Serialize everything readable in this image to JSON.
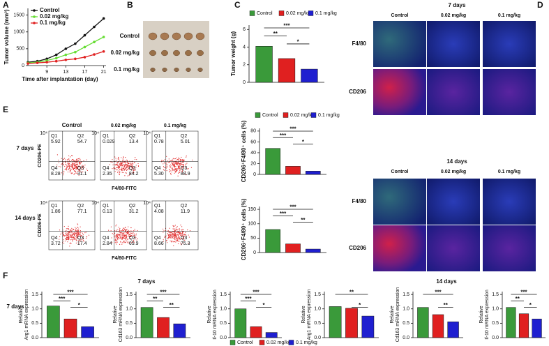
{
  "panel_labels": [
    "A",
    "B",
    "C",
    "D",
    "E",
    "F"
  ],
  "legend": {
    "names": [
      "Control",
      "0.02 mg/kg",
      "0.1 mg/kg"
    ],
    "colors": [
      "#3a9a3a",
      "#e02020",
      "#1f1fd0"
    ]
  },
  "photo": {
    "rows": [
      "Control",
      "0.02 mg/kg",
      "0.1 mg/kg"
    ]
  },
  "microscopy": [
    {
      "title": "7 days",
      "columns": [
        "Control",
        "0.02 mg/kg",
        "0.1 mg/kg"
      ],
      "rows": [
        "F4/80",
        "CD206"
      ]
    },
    {
      "title": "14 days",
      "columns": [
        "Control",
        "0.02 mg/kg",
        "0.1 mg/kg"
      ],
      "rows": [
        "F4/80",
        "CD206"
      ]
    }
  ],
  "flow": {
    "columns": [
      "Control",
      "0.02 mg/kg",
      "0.1 mg/kg"
    ],
    "y_label": "CD206-PE",
    "x_label": "F4/80-FITC",
    "tick": "10⁴",
    "quadrant_names": [
      "Q1",
      "Q2",
      "Q3",
      "Q4"
    ],
    "rows": [
      {
        "label": "7 days",
        "plots": [
          [
            "5.92",
            "54.7",
            "31.1",
            "8.28"
          ],
          [
            "0.029",
            "13.4",
            "84.2",
            "2.35"
          ],
          [
            "0.78",
            "5.01",
            "88.9",
            "5.30"
          ]
        ]
      },
      {
        "label": "14 days",
        "plots": [
          [
            "1.86",
            "77.1",
            "17.4",
            "3.72"
          ],
          [
            "0.13",
            "31.2",
            "65.9",
            "2.84"
          ],
          [
            "4.08",
            "11.9",
            "75.3",
            "8.66"
          ]
        ]
      }
    ]
  },
  "gene_expression": {
    "titles": [
      "7 days",
      "14 days"
    ],
    "row_label": "7 days"
  },
  "chart_data": [
    {
      "type": "line",
      "xlabel": "Time after implantation (day)",
      "ylabel": "Tumor volume (mm³)",
      "x": [
        5,
        7,
        9,
        11,
        13,
        15,
        17,
        19,
        21
      ],
      "xlim": [
        5,
        21.5
      ],
      "xticks": [
        9,
        13,
        17,
        21
      ],
      "ylim": [
        0,
        1700
      ],
      "yticks": [
        0,
        500,
        1000,
        1500
      ],
      "series": [
        {
          "name": "Control",
          "color": "#111111",
          "values": [
            100,
            130,
            200,
            320,
            500,
            650,
            900,
            1150,
            1400
          ]
        },
        {
          "name": "0.02 mg/kg",
          "color": "#66dd33",
          "values": [
            80,
            100,
            150,
            220,
            320,
            400,
            550,
            700,
            850
          ]
        },
        {
          "name": "0.1 mg/kg",
          "color": "#e02020",
          "values": [
            60,
            80,
            100,
            130,
            170,
            200,
            250,
            330,
            420
          ]
        }
      ]
    },
    {
      "type": "bar",
      "ylabel": [
        "Tumor weight (g)"
      ],
      "values": [
        4.1,
        2.7,
        1.5
      ],
      "ylim": [
        0,
        6.5
      ],
      "yticks": [
        0,
        2,
        4,
        6
      ],
      "significance": [
        "***",
        "**",
        "*"
      ]
    },
    {
      "type": "bar",
      "ylabel": [
        "CD206⁺F4/80⁺ cells (%)"
      ],
      "values": [
        48,
        15,
        6
      ],
      "ylim": [
        0,
        85
      ],
      "yticks": [
        0,
        20,
        40,
        60,
        80
      ],
      "significance": [
        "***",
        "***",
        "*"
      ]
    },
    {
      "type": "bar",
      "ylabel": [
        "CD206⁺F4/80⁺ cells (%)"
      ],
      "values": [
        80,
        30,
        12
      ],
      "ylim": [
        0,
        160
      ],
      "yticks": [
        0,
        50,
        100,
        150
      ],
      "significance": [
        "***",
        "***",
        "**"
      ]
    },
    {
      "type": "bar",
      "ylabel": [
        "Relative",
        "Arg1 mRNA expression"
      ],
      "values": [
        1.1,
        0.65,
        0.38
      ],
      "ylim": [
        0,
        1.6
      ],
      "yticks": [
        {
          "value": 0,
          "label": "0.0"
        },
        {
          "value": 0.5,
          "label": "0.5"
        },
        {
          "value": 1,
          "label": "1.0"
        },
        {
          "value": 1.5,
          "label": "1.5"
        }
      ],
      "significance": [
        "***",
        "***",
        "*"
      ]
    },
    {
      "type": "bar",
      "ylabel": [
        "Relative",
        "Cd163 mRNA expression"
      ],
      "values": [
        1.05,
        0.7,
        0.48
      ],
      "ylim": [
        0,
        1.6
      ],
      "yticks": [
        {
          "value": 0,
          "label": "0.0"
        },
        {
          "value": 0.5,
          "label": "0.5"
        },
        {
          "value": 1,
          "label": "1.0"
        },
        {
          "value": 1.5,
          "label": "1.5"
        }
      ],
      "significance": [
        "***",
        "**",
        "**"
      ]
    },
    {
      "type": "bar",
      "ylabel": [
        "Relative",
        "Il-10 mRNA expression"
      ],
      "values": [
        1.0,
        0.38,
        0.18
      ],
      "ylim": [
        0,
        1.6
      ],
      "yticks": [
        {
          "value": 0,
          "label": "0.0"
        },
        {
          "value": 0.5,
          "label": "0.5"
        },
        {
          "value": 1,
          "label": "1.0"
        },
        {
          "value": 1.5,
          "label": "1.5"
        }
      ],
      "significance": [
        "***",
        "***",
        "*"
      ]
    },
    {
      "type": "bar",
      "ylabel": [
        "Relative",
        "Arg1 mRNA expression"
      ],
      "values": [
        1.08,
        1.02,
        0.75
      ],
      "ylim": [
        0,
        1.6
      ],
      "yticks": [
        {
          "value": 0,
          "label": "0.0"
        },
        {
          "value": 0.5,
          "label": "0.5"
        },
        {
          "value": 1,
          "label": "1.0"
        },
        {
          "value": 1.5,
          "label": "1.5"
        }
      ],
      "significance": [
        "**",
        "",
        "*"
      ]
    },
    {
      "type": "bar",
      "ylabel": [
        "Relative",
        "Cd163 mRNA expression"
      ],
      "values": [
        1.05,
        0.8,
        0.55
      ],
      "ylim": [
        0,
        1.6
      ],
      "yticks": [
        {
          "value": 0,
          "label": "0.0"
        },
        {
          "value": 0.5,
          "label": "0.5"
        },
        {
          "value": 1,
          "label": "1.0"
        },
        {
          "value": 1.5,
          "label": "1.5"
        }
      ],
      "significance": [
        "***",
        "",
        "**"
      ]
    },
    {
      "type": "bar",
      "ylabel": [
        "Relative",
        "Il-10 mRNA expression"
      ],
      "values": [
        1.05,
        0.83,
        0.65
      ],
      "ylim": [
        0,
        1.6
      ],
      "yticks": [
        {
          "value": 0,
          "label": "0.0"
        },
        {
          "value": 0.5,
          "label": "0.5"
        },
        {
          "value": 1,
          "label": "1.0"
        },
        {
          "value": 1.5,
          "label": "1.5"
        }
      ],
      "significance": [
        "***",
        "**",
        "*"
      ]
    }
  ]
}
